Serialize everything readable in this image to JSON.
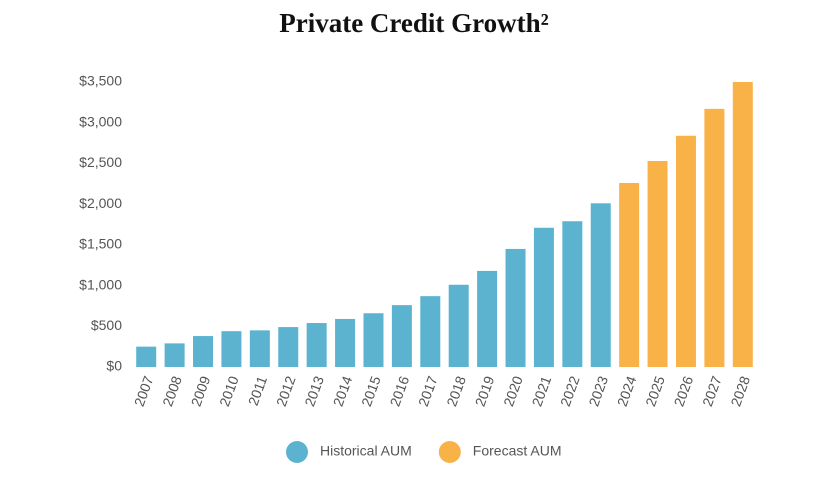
{
  "chart_data": {
    "type": "bar",
    "title": "Private Credit Growth²",
    "categories": [
      "2007",
      "2008",
      "2009",
      "2010",
      "2011",
      "2012",
      "2013",
      "2014",
      "2015",
      "2016",
      "2017",
      "2018",
      "2019",
      "2020",
      "2021",
      "2022",
      "2023",
      "2024",
      "2025",
      "2026",
      "2027",
      "2028"
    ],
    "series": [
      {
        "name": "Historical AUM",
        "color": "#5bb3d0",
        "values": [
          250,
          290,
          380,
          440,
          450,
          490,
          540,
          590,
          660,
          760,
          870,
          1010,
          1180,
          1450,
          1710,
          1790,
          2010,
          null,
          null,
          null,
          null,
          null
        ]
      },
      {
        "name": "Forecast AUM",
        "color": "#f9b248",
        "values": [
          null,
          null,
          null,
          null,
          null,
          null,
          null,
          null,
          null,
          null,
          null,
          null,
          null,
          null,
          null,
          null,
          null,
          2260,
          2530,
          2840,
          3170,
          3500
        ]
      }
    ],
    "ylim": [
      0,
      3500
    ],
    "yticks": [
      {
        "value": 0,
        "label": "$0"
      },
      {
        "value": 500,
        "label": "$500"
      },
      {
        "value": 1000,
        "label": "$1,000"
      },
      {
        "value": 1500,
        "label": "$1,500"
      },
      {
        "value": 2000,
        "label": "$2,000"
      },
      {
        "value": 2500,
        "label": "$2,500"
      },
      {
        "value": 3000,
        "label": "$3,000"
      },
      {
        "value": 3500,
        "label": "$3,500"
      }
    ],
    "grid": false
  }
}
